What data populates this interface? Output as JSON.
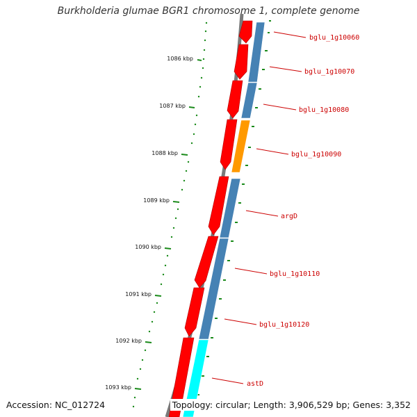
{
  "header": {
    "title": "Burkholderia glumae BGR1 chromosome 1, complete genome"
  },
  "footer": {
    "accession": "Accession: NC_012724",
    "topology": "Topology: circular; Length: 3,906,529 bp; Genes: 3,352"
  },
  "scale_ticks": [
    "1086 kbp",
    "1087 kbp",
    "1088 kbp",
    "1089 kbp",
    "1090 kbp",
    "1091 kbp",
    "1092 kbp",
    "1093 kbp"
  ],
  "gene_labels": [
    "bglu_1g10060",
    "bglu_1g10070",
    "bglu_1g10080",
    "bglu_1g10090",
    "argD",
    "bglu_1g10110",
    "bglu_1g10120",
    "astD"
  ],
  "colors": {
    "forward_cds": "#ff0000",
    "cog_blue": "#4682b4",
    "cog_orange": "#ff9900",
    "cog_cyan": "#00ffff",
    "backbone": "#808080",
    "ticks": "#006400",
    "label": "#cc0000"
  }
}
